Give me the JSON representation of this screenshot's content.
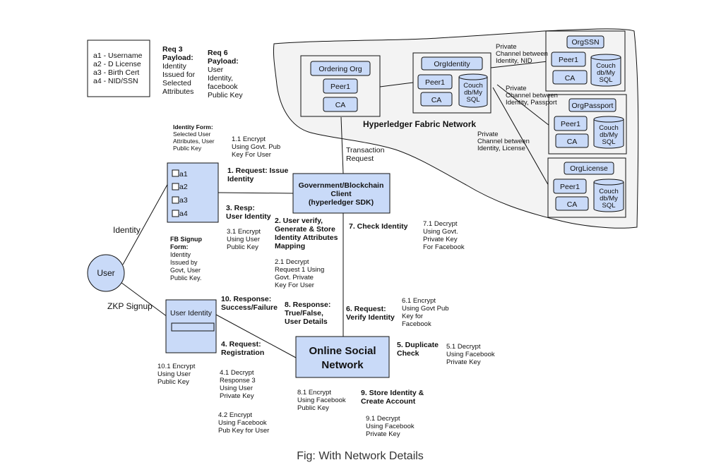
{
  "legend": [
    "a1 - Username",
    "a2 - D License",
    "a3 - Birth Cert",
    "a4 - NID/SSN"
  ],
  "req3": [
    "Req 3",
    "Payload:",
    "Identity",
    "Issued for",
    "Selected",
    "Attributes"
  ],
  "req6": [
    "Req 6",
    "Payload:",
    "User",
    "Identity,",
    "facebook",
    "Public Key"
  ],
  "network": {
    "title": "Hyperledger Fabric Network",
    "ordering": {
      "name": "Ordering Org",
      "peer": "Peer1",
      "ca": "CA"
    },
    "identity": {
      "name": "OrgIdentity",
      "peer": "Peer1",
      "ca": "CA",
      "db": [
        "Couch",
        "db/My",
        "SQL"
      ]
    },
    "ssn": {
      "name": "OrgSSN",
      "peer": "Peer1",
      "ca": "CA",
      "db": [
        "Couch",
        "db/My",
        "SQL"
      ]
    },
    "passport": {
      "name": "OrgPassport",
      "peer": "Peer1",
      "ca": "CA",
      "db": [
        "Couch",
        "db/My",
        "SQL"
      ]
    },
    "license": {
      "name": "OrgLicense",
      "peer": "Peer1",
      "ca": "CA",
      "db": [
        "Couch",
        "db/My",
        "SQL"
      ]
    },
    "channel_nid": [
      "Private",
      "Channel between",
      "Identity, NID"
    ],
    "channel_passport": [
      "Private",
      "Channel between",
      "Identity, Passport"
    ],
    "channel_license": [
      "Private",
      "Channel between",
      "Identity, License"
    ]
  },
  "identity_form": {
    "title": [
      "Identity Form:",
      "Selected User",
      "Attributes, User",
      "Public Key"
    ],
    "checkboxes": [
      "a1",
      "a2",
      "a3",
      "a4"
    ]
  },
  "gov_client": [
    "Government/Blockchain",
    "Client",
    "(hyperledger SDK)"
  ],
  "transaction": [
    "Transaction",
    "Request"
  ],
  "user": "User",
  "identity_label": "Identity",
  "zkp_label": "ZKP Signup",
  "user_identity_box": "User Identity",
  "fb_form": [
    "FB Signup",
    "Form:",
    "Identity",
    "Issued by",
    "Govt, User",
    "Public Key."
  ],
  "osn": [
    "Online Social",
    "Network"
  ],
  "steps": {
    "s1": [
      "1. Request: Issue",
      "Identity"
    ],
    "s1_1": [
      "1.1 Encrypt",
      "Using Govt. Pub",
      "Key For User"
    ],
    "s2": [
      "2. User verify,",
      "Generate & Store",
      "Identity Attributes",
      "Mapping"
    ],
    "s2_1": [
      "2.1 Decrypt",
      "Request 1 Using",
      "Govt. Private",
      "Key For User"
    ],
    "s3": [
      "3. Resp:",
      "User Identity"
    ],
    "s3_1": [
      "3.1 Encrypt",
      "Using User",
      "Public Key"
    ],
    "s4": [
      "4. Request:",
      "Registration"
    ],
    "s4_1": [
      "4.1 Decrypt",
      "Response 3",
      "Using User",
      "Private Key"
    ],
    "s4_2": [
      "4.2 Encrypt",
      "Using Facebook",
      "Pub Key for User"
    ],
    "s5": [
      "5. Duplicate",
      "Check"
    ],
    "s5_1": [
      "5.1 Decrypt",
      "Using Facebook",
      "Private Key"
    ],
    "s6": [
      "6. Request:",
      "Verify Identity"
    ],
    "s6_1": [
      "6.1 Encrypt",
      "Using Govt Pub",
      "Key for",
      "Facebook"
    ],
    "s7": [
      "7. Check Identity"
    ],
    "s7_1": [
      "7.1 Decrypt",
      "Using Govt.",
      "Private Key",
      "For Facebook"
    ],
    "s8": [
      "8. Response:",
      "True/False,",
      "User Details"
    ],
    "s8_1": [
      "8.1 Encrypt",
      "Using Facebook",
      "Public Key"
    ],
    "s9": [
      "9. Store Identity &",
      "Create Account"
    ],
    "s9_1": [
      "9.1 Decrypt",
      "Using Facebook",
      "Private Key"
    ],
    "s10": [
      "10. Response:",
      "Success/Failure"
    ],
    "s10_1": [
      "10.1 Encrypt",
      "Using User",
      "Public Key"
    ]
  },
  "caption": "Fig: With Network Details"
}
